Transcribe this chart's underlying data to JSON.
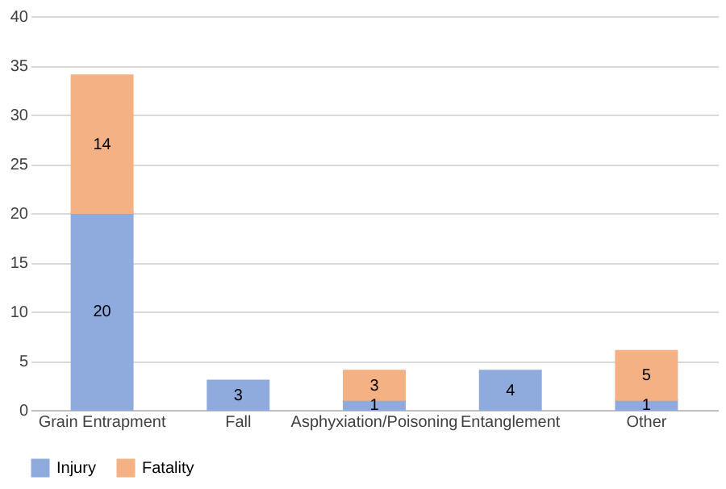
{
  "chart_data": {
    "type": "bar",
    "stacked": true,
    "categories": [
      "Grain Entrapment",
      "Fall",
      "Asphyxiation/Poisoning",
      "Entanglement",
      "Other"
    ],
    "series": [
      {
        "name": "Injury",
        "color": "#8faadc",
        "values": [
          20,
          3,
          1,
          4,
          1
        ],
        "value_labels": [
          "20",
          "3",
          "1",
          "4",
          "1"
        ]
      },
      {
        "name": "Fatality",
        "color": "#f4b183",
        "values": [
          14,
          null,
          3,
          null,
          5
        ],
        "value_labels": [
          "14",
          null,
          "3",
          null,
          "5"
        ]
      }
    ],
    "ylim": [
      0,
      40
    ],
    "yticks": [
      0,
      5,
      10,
      15,
      20,
      25,
      30,
      35,
      40
    ],
    "grid": "y",
    "legend": "bottom"
  }
}
